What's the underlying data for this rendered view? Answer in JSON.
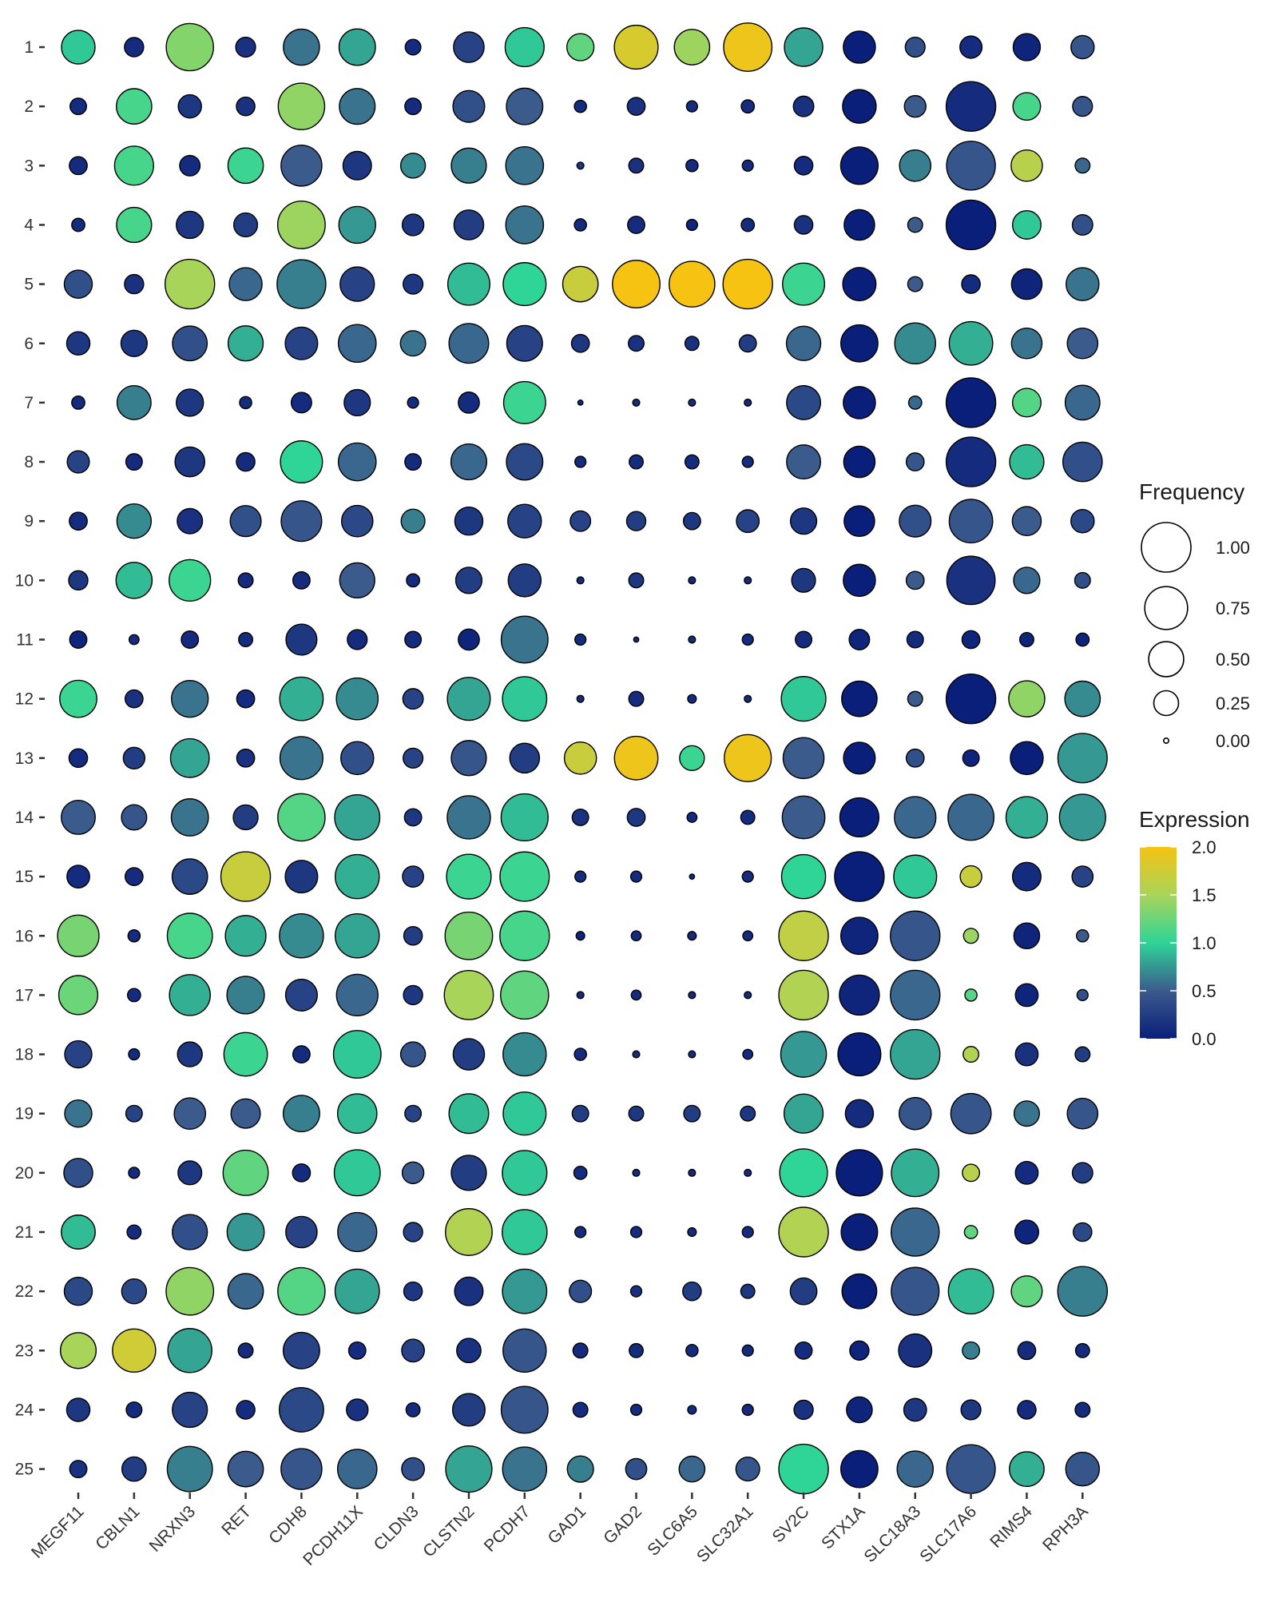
{
  "chart_data": {
    "type": "dotplot",
    "x_categories": [
      "MEGF11",
      "CBLN1",
      "NRXN3",
      "RET",
      "CDH8",
      "PCDH11X",
      "CLDN3",
      "CLSTN2",
      "PCDH7",
      "GAD1",
      "GAD2",
      "SLC6A5",
      "SLC32A1",
      "SV2C",
      "STX1A",
      "SLC18A3",
      "SLC17A6",
      "RIMS4",
      "RPH3A"
    ],
    "y_categories": [
      "1",
      "2",
      "3",
      "4",
      "5",
      "6",
      "7",
      "8",
      "9",
      "10",
      "11",
      "12",
      "13",
      "14",
      "15",
      "16",
      "17",
      "18",
      "19",
      "20",
      "21",
      "22",
      "23",
      "24",
      "25"
    ],
    "frequency": [
      [
        0.46,
        0.15,
        0.91,
        0.16,
        0.53,
        0.54,
        0.1,
        0.38,
        0.62,
        0.3,
        0.78,
        0.51,
        0.95,
        0.6,
        0.42,
        0.16,
        0.2,
        0.3,
        0.22
      ],
      [
        0.11,
        0.51,
        0.22,
        0.14,
        0.88,
        0.52,
        0.11,
        0.41,
        0.54,
        0.06,
        0.13,
        0.05,
        0.07,
        0.17,
        0.46,
        0.19,
        1.0,
        0.31,
        0.16
      ],
      [
        0.13,
        0.62,
        0.17,
        0.51,
        0.68,
        0.33,
        0.25,
        0.5,
        0.58,
        0.02,
        0.09,
        0.06,
        0.05,
        0.14,
        0.57,
        0.4,
        0.97,
        0.4,
        0.09
      ],
      [
        0.07,
        0.5,
        0.3,
        0.23,
        0.92,
        0.55,
        0.19,
        0.36,
        0.58,
        0.06,
        0.12,
        0.05,
        0.07,
        0.14,
        0.38,
        0.09,
        1.0,
        0.33,
        0.17
      ],
      [
        0.32,
        0.15,
        1.0,
        0.44,
        0.97,
        0.48,
        0.16,
        0.72,
        0.75,
        0.51,
        0.92,
        0.85,
        1.0,
        0.72,
        0.45,
        0.09,
        0.14,
        0.38,
        0.44
      ],
      [
        0.22,
        0.28,
        0.49,
        0.5,
        0.43,
        0.58,
        0.26,
        0.64,
        0.52,
        0.13,
        0.1,
        0.08,
        0.12,
        0.48,
        0.56,
        0.68,
        0.77,
        0.38,
        0.38
      ],
      [
        0.07,
        0.47,
        0.3,
        0.06,
        0.17,
        0.28,
        0.05,
        0.18,
        0.72,
        0.01,
        0.02,
        0.02,
        0.02,
        0.47,
        0.42,
        0.07,
        1.0,
        0.33,
        0.49
      ],
      [
        0.2,
        0.11,
        0.36,
        0.14,
        0.72,
        0.58,
        0.11,
        0.52,
        0.54,
        0.05,
        0.08,
        0.08,
        0.05,
        0.47,
        0.4,
        0.13,
        1.0,
        0.48,
        0.63
      ],
      [
        0.13,
        0.48,
        0.26,
        0.39,
        0.67,
        0.4,
        0.23,
        0.32,
        0.46,
        0.17,
        0.15,
        0.12,
        0.21,
        0.28,
        0.38,
        0.41,
        0.77,
        0.34,
        0.22
      ],
      [
        0.15,
        0.53,
        0.7,
        0.09,
        0.12,
        0.5,
        0.07,
        0.28,
        0.44,
        0.02,
        0.09,
        0.02,
        0.02,
        0.23,
        0.42,
        0.13,
        0.95,
        0.28,
        0.1
      ],
      [
        0.12,
        0.04,
        0.12,
        0.08,
        0.39,
        0.16,
        0.11,
        0.18,
        0.89,
        0.05,
        0.01,
        0.02,
        0.05,
        0.11,
        0.17,
        0.11,
        0.13,
        0.08,
        0.07
      ],
      [
        0.56,
        0.13,
        0.55,
        0.13,
        0.77,
        0.71,
        0.17,
        0.75,
        0.8,
        0.02,
        0.09,
        0.03,
        0.02,
        0.81,
        0.51,
        0.09,
        1.0,
        0.53,
        0.51
      ],
      [
        0.14,
        0.19,
        0.61,
        0.13,
        0.75,
        0.44,
        0.16,
        0.5,
        0.36,
        0.42,
        0.77,
        0.25,
        0.9,
        0.68,
        0.41,
        0.13,
        0.11,
        0.44,
        0.99
      ],
      [
        0.47,
        0.26,
        0.56,
        0.25,
        0.91,
        0.83,
        0.12,
        0.76,
        0.9,
        0.11,
        0.13,
        0.04,
        0.08,
        0.74,
        0.62,
        0.7,
        0.86,
        0.7,
        0.87
      ],
      [
        0.21,
        0.13,
        0.51,
        1.0,
        0.43,
        0.79,
        0.18,
        0.81,
        0.99,
        0.05,
        0.05,
        0.01,
        0.05,
        0.79,
        1.0,
        0.75,
        0.19,
        0.33,
        0.18
      ],
      [
        0.7,
        0.06,
        0.83,
        0.67,
        0.79,
        0.79,
        0.14,
        0.92,
        1.0,
        0.03,
        0.04,
        0.03,
        0.04,
        1.0,
        0.56,
        1.0,
        0.09,
        0.27,
        0.06
      ],
      [
        0.62,
        0.07,
        0.68,
        0.57,
        0.41,
        0.7,
        0.15,
        0.98,
        0.94,
        0.02,
        0.04,
        0.02,
        0.02,
        1.0,
        0.65,
        1.0,
        0.06,
        0.21,
        0.05
      ],
      [
        0.3,
        0.05,
        0.25,
        0.77,
        0.12,
        0.92,
        0.25,
        0.4,
        0.76,
        0.06,
        0.02,
        0.02,
        0.04,
        0.85,
        0.75,
        1.0,
        0.1,
        0.21,
        0.09
      ],
      [
        0.3,
        0.11,
        0.4,
        0.35,
        0.54,
        0.63,
        0.11,
        0.64,
        0.75,
        0.11,
        0.09,
        0.11,
        0.09,
        0.62,
        0.32,
        0.42,
        0.66,
        0.26,
        0.38
      ],
      [
        0.34,
        0.05,
        0.23,
        0.83,
        0.13,
        0.86,
        0.19,
        0.5,
        0.81,
        0.07,
        0.02,
        0.02,
        0.02,
        0.93,
        0.87,
        0.92,
        0.12,
        0.21,
        0.17
      ],
      [
        0.47,
        0.08,
        0.5,
        0.56,
        0.4,
        0.62,
        0.15,
        0.89,
        0.82,
        0.05,
        0.05,
        0.03,
        0.05,
        1.0,
        0.54,
        0.94,
        0.07,
        0.23,
        0.14
      ],
      [
        0.32,
        0.25,
        0.92,
        0.51,
        0.91,
        0.8,
        0.14,
        0.33,
        0.8,
        0.2,
        0.05,
        0.14,
        0.08,
        0.29,
        0.49,
        0.93,
        0.83,
        0.39,
        1.0
      ],
      [
        0.52,
        0.76,
        0.79,
        0.09,
        0.54,
        0.12,
        0.21,
        0.24,
        0.76,
        0.09,
        0.08,
        0.06,
        0.05,
        0.12,
        0.15,
        0.45,
        0.12,
        0.13,
        0.08
      ],
      [
        0.22,
        0.1,
        0.5,
        0.14,
        0.8,
        0.19,
        0.08,
        0.43,
        0.89,
        0.09,
        0.05,
        0.03,
        0.05,
        0.15,
        0.27,
        0.21,
        0.16,
        0.14,
        0.09
      ],
      [
        0.12,
        0.24,
        0.83,
        0.51,
        0.68,
        0.63,
        0.21,
        0.87,
        0.79,
        0.28,
        0.18,
        0.27,
        0.23,
        1.0,
        0.56,
        0.53,
        0.96,
        0.49,
        0.46
      ]
    ],
    "expression": [
      [
        0.95,
        0.1,
        1.35,
        0.15,
        0.6,
        0.8,
        0.1,
        0.3,
        0.95,
        1.2,
        1.8,
        1.45,
        1.95,
        0.8,
        0.0,
        0.4,
        0.1,
        0.05,
        0.45
      ],
      [
        0.1,
        1.1,
        0.2,
        0.15,
        1.4,
        0.6,
        0.1,
        0.4,
        0.5,
        0.1,
        0.15,
        0.1,
        0.1,
        0.15,
        0.0,
        0.5,
        0.1,
        1.1,
        0.45
      ],
      [
        0.1,
        1.1,
        0.1,
        1.05,
        0.5,
        0.2,
        0.7,
        0.65,
        0.6,
        0.2,
        0.15,
        0.1,
        0.1,
        0.1,
        0.0,
        0.65,
        0.45,
        1.6,
        0.55
      ],
      [
        0.1,
        1.1,
        0.2,
        0.25,
        1.45,
        0.75,
        0.2,
        0.25,
        0.6,
        0.1,
        0.1,
        0.05,
        0.1,
        0.15,
        0.0,
        0.5,
        0.0,
        0.95,
        0.4
      ],
      [
        0.4,
        0.15,
        1.5,
        0.55,
        0.65,
        0.3,
        0.2,
        0.9,
        1.0,
        1.7,
        2.0,
        2.0,
        2.0,
        1.05,
        0.0,
        0.5,
        0.1,
        0.05,
        0.6
      ],
      [
        0.2,
        0.2,
        0.4,
        0.85,
        0.3,
        0.55,
        0.6,
        0.55,
        0.3,
        0.2,
        0.15,
        0.15,
        0.25,
        0.55,
        0.0,
        0.7,
        0.85,
        0.6,
        0.5
      ],
      [
        0.1,
        0.65,
        0.2,
        0.1,
        0.1,
        0.2,
        0.1,
        0.1,
        1.05,
        0.1,
        0.1,
        0.1,
        0.1,
        0.35,
        0.0,
        0.55,
        0.0,
        1.15,
        0.55
      ],
      [
        0.3,
        0.1,
        0.2,
        0.1,
        1.0,
        0.55,
        0.1,
        0.55,
        0.35,
        0.1,
        0.1,
        0.1,
        0.1,
        0.5,
        0.0,
        0.45,
        0.1,
        0.9,
        0.4
      ],
      [
        0.1,
        0.7,
        0.15,
        0.4,
        0.45,
        0.35,
        0.65,
        0.2,
        0.3,
        0.3,
        0.25,
        0.2,
        0.3,
        0.2,
        0.0,
        0.4,
        0.45,
        0.5,
        0.35
      ],
      [
        0.2,
        0.9,
        1.05,
        0.1,
        0.1,
        0.5,
        0.1,
        0.25,
        0.25,
        0.1,
        0.2,
        0.1,
        0.1,
        0.2,
        0.0,
        0.5,
        0.15,
        0.55,
        0.4
      ],
      [
        0.05,
        0.1,
        0.1,
        0.1,
        0.2,
        0.1,
        0.1,
        0.05,
        0.6,
        0.1,
        0.1,
        0.1,
        0.1,
        0.1,
        0.05,
        0.1,
        0.05,
        0.05,
        0.05
      ],
      [
        1.05,
        0.15,
        0.6,
        0.1,
        0.85,
        0.7,
        0.3,
        0.8,
        0.95,
        0.1,
        0.1,
        0.1,
        0.1,
        0.95,
        0.0,
        0.5,
        0.0,
        1.4,
        0.7
      ],
      [
        0.1,
        0.25,
        0.8,
        0.15,
        0.6,
        0.4,
        0.3,
        0.45,
        0.25,
        1.7,
        1.95,
        1.05,
        1.95,
        0.5,
        0.0,
        0.4,
        0.05,
        0.0,
        0.75
      ],
      [
        0.5,
        0.45,
        0.6,
        0.25,
        1.15,
        0.8,
        0.2,
        0.6,
        0.9,
        0.15,
        0.2,
        0.1,
        0.1,
        0.5,
        0.0,
        0.55,
        0.55,
        0.85,
        0.75
      ],
      [
        0.1,
        0.1,
        0.35,
        1.7,
        0.2,
        0.85,
        0.3,
        1.05,
        1.05,
        0.1,
        0.1,
        0.1,
        0.1,
        1.0,
        0.0,
        0.95,
        1.7,
        0.1,
        0.3
      ],
      [
        1.3,
        0.1,
        1.1,
        0.85,
        0.7,
        0.8,
        0.25,
        1.3,
        1.1,
        0.05,
        0.1,
        0.1,
        0.1,
        1.65,
        0.05,
        0.45,
        1.45,
        0.05,
        0.5
      ],
      [
        1.25,
        0.1,
        0.85,
        0.65,
        0.3,
        0.55,
        0.2,
        1.5,
        1.2,
        0.1,
        0.1,
        0.1,
        0.1,
        1.55,
        0.05,
        0.55,
        1.15,
        0.05,
        0.4
      ],
      [
        0.3,
        0.1,
        0.2,
        1.05,
        0.1,
        0.95,
        0.45,
        0.25,
        0.7,
        0.1,
        0.1,
        0.1,
        0.1,
        0.75,
        0.0,
        0.8,
        1.55,
        0.15,
        0.25
      ],
      [
        0.6,
        0.3,
        0.5,
        0.5,
        0.65,
        0.9,
        0.3,
        0.9,
        0.95,
        0.25,
        0.2,
        0.25,
        0.2,
        0.8,
        0.1,
        0.45,
        0.45,
        0.6,
        0.45
      ],
      [
        0.4,
        0.1,
        0.2,
        1.2,
        0.1,
        0.95,
        0.5,
        0.25,
        0.95,
        0.1,
        0.1,
        0.1,
        0.1,
        1.0,
        0.0,
        0.85,
        1.6,
        0.1,
        0.25
      ],
      [
        0.9,
        0.1,
        0.4,
        0.75,
        0.3,
        0.55,
        0.3,
        1.55,
        0.95,
        0.1,
        0.1,
        0.1,
        0.1,
        1.55,
        0.0,
        0.55,
        1.2,
        0.05,
        0.35
      ],
      [
        0.35,
        0.35,
        1.4,
        0.55,
        1.15,
        0.8,
        0.2,
        0.15,
        0.75,
        0.4,
        0.15,
        0.25,
        0.2,
        0.25,
        0.0,
        0.45,
        0.9,
        1.2,
        0.65
      ],
      [
        1.5,
        1.75,
        0.8,
        0.1,
        0.3,
        0.1,
        0.3,
        0.15,
        0.45,
        0.1,
        0.1,
        0.1,
        0.1,
        0.1,
        0.05,
        0.15,
        0.65,
        0.1,
        0.1
      ],
      [
        0.2,
        0.1,
        0.3,
        0.1,
        0.35,
        0.15,
        0.1,
        0.25,
        0.45,
        0.1,
        0.1,
        0.1,
        0.1,
        0.15,
        0.05,
        0.2,
        0.2,
        0.1,
        0.1
      ],
      [
        0.15,
        0.25,
        0.65,
        0.5,
        0.45,
        0.55,
        0.4,
        0.8,
        0.6,
        0.65,
        0.4,
        0.55,
        0.45,
        1.0,
        0.0,
        0.55,
        0.45,
        0.85,
        0.45
      ]
    ],
    "legends": {
      "size": {
        "title": "Frequency",
        "entries": [
          1.0,
          0.75,
          0.5,
          0.25,
          0.0
        ],
        "labels": [
          "1.00",
          "0.75",
          "0.50",
          "0.25",
          "0.00"
        ]
      },
      "color": {
        "title": "Expression",
        "range": [
          0.0,
          2.0
        ],
        "ticks": [
          "2.0",
          "1.5",
          "1.0",
          "0.5",
          "0.0"
        ],
        "palette": [
          "#0a1f7a",
          "#3b5b8c",
          "#2fd497",
          "#a9d45a",
          "#f6c313"
        ]
      }
    },
    "axes": {
      "x_label": "",
      "y_label": "",
      "x_tick_rotation": "45deg"
    },
    "grid": false,
    "legend_position": "right"
  }
}
